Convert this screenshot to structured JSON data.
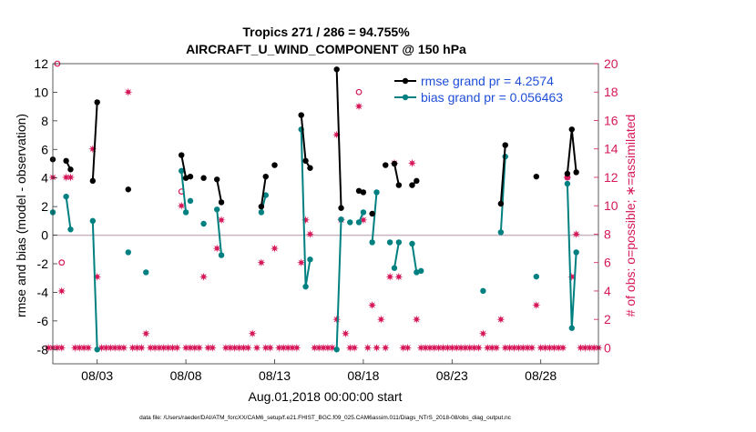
{
  "chart_data": {
    "type": "line",
    "title_line1": "Tropics 271 / 286 = 94.755%",
    "title_line2": "AIRCRAFT_U_WIND_COMPONENT @ 150 hPa",
    "xlabel": "Aug.01,2018 00:00:00 start",
    "ylabel_left": "rmse and bias (model - observation)",
    "ylabel_right": "# of obs: o=possible; ∗=assimilated",
    "footer": "data file: /Users/raeder/DAI/ATM_forcXX/CAM6_setup/f.e21.FHIST_BGC.f09_025.CAM6assim.011/Diags_NTrS_2018-08/obs_diag_output.nc",
    "x_range_days": [
      0.5,
      31.25
    ],
    "x_ticks": [
      {
        "day": 3,
        "label": "08/03"
      },
      {
        "day": 8,
        "label": "08/08"
      },
      {
        "day": 13,
        "label": "08/13"
      },
      {
        "day": 18,
        "label": "08/18"
      },
      {
        "day": 23,
        "label": "08/23"
      },
      {
        "day": 28,
        "label": "08/28"
      }
    ],
    "ylim_left": [
      -9,
      12
    ],
    "yticks_left": [
      "12",
      "10",
      "8",
      "6",
      "4",
      "2",
      "0",
      "-2",
      "-4",
      "-6",
      "-8"
    ],
    "ylim_right": [
      -1.125,
      20
    ],
    "yticks_right": [
      "20",
      "18",
      "16",
      "14",
      "12",
      "10",
      "8",
      "6",
      "4",
      "2",
      "0"
    ],
    "legend": [
      {
        "label": "rmse grand pr = 4.2574",
        "color": "#000000"
      },
      {
        "label": "bias grand pr = 0.056463",
        "color": "#008080"
      }
    ],
    "colors": {
      "rmse": "#000000",
      "bias": "#008080",
      "obs": "#d6175a",
      "zero_line": "#c8b4c0",
      "legend_text": "#1f4fd8"
    },
    "rmse_segments": [
      [
        [
          0.5,
          5.3
        ]
      ],
      [
        [
          1.25,
          5.2
        ],
        [
          1.5,
          4.6
        ]
      ],
      [
        [
          2.75,
          3.8
        ],
        [
          3.0,
          9.3
        ]
      ],
      [
        [
          4.75,
          3.2
        ]
      ],
      [
        [
          7.75,
          5.6
        ],
        [
          8.0,
          4.0
        ]
      ],
      [
        [
          8.25,
          4.1
        ]
      ],
      [
        [
          9.0,
          4.0
        ]
      ],
      [
        [
          9.75,
          3.9
        ],
        [
          10.0,
          2.3
        ]
      ],
      [
        [
          12.25,
          2.0
        ],
        [
          12.5,
          4.1
        ]
      ],
      [
        [
          13.0,
          4.9
        ]
      ],
      [
        [
          14.5,
          8.4
        ],
        [
          14.75,
          5.2
        ],
        [
          15.0,
          4.7
        ]
      ],
      [
        [
          16.5,
          11.6
        ],
        [
          16.75,
          1.9
        ]
      ],
      [
        [
          17.75,
          3.1
        ],
        [
          18.0,
          3.0
        ]
      ],
      [
        [
          18.5,
          1.5
        ]
      ],
      [
        [
          19.25,
          4.9
        ]
      ],
      [
        [
          19.75,
          5.0
        ],
        [
          20.0,
          3.5
        ]
      ],
      [
        [
          20.75,
          3.5
        ],
        [
          21.0,
          3.8
        ]
      ],
      [
        [
          25.75,
          2.2
        ],
        [
          26.0,
          6.3
        ]
      ],
      [
        [
          27.75,
          4.1
        ]
      ],
      [
        [
          29.5,
          4.3
        ],
        [
          29.75,
          7.4
        ],
        [
          30.0,
          4.4
        ]
      ]
    ],
    "bias_segments": [
      [
        [
          0.5,
          1.6
        ]
      ],
      [
        [
          1.25,
          2.7
        ],
        [
          1.5,
          0.4
        ]
      ],
      [
        [
          2.75,
          1.0
        ],
        [
          3.0,
          -8.0
        ]
      ],
      [
        [
          4.75,
          -1.2
        ]
      ],
      [
        [
          5.75,
          -2.6
        ]
      ],
      [
        [
          7.75,
          4.5
        ],
        [
          8.0,
          1.6
        ]
      ],
      [
        [
          8.25,
          2.4
        ]
      ],
      [
        [
          9.0,
          0.8
        ]
      ],
      [
        [
          9.75,
          1.8
        ],
        [
          10.0,
          -1.4
        ]
      ],
      [
        [
          12.25,
          1.6
        ],
        [
          12.5,
          2.8
        ]
      ],
      [
        [
          14.5,
          7.4
        ],
        [
          14.75,
          -3.6
        ],
        [
          15.0,
          -1.7
        ]
      ],
      [
        [
          16.5,
          -8.0
        ],
        [
          16.75,
          1.1
        ]
      ],
      [
        [
          17.25,
          0.9
        ]
      ],
      [
        [
          17.75,
          0.9
        ],
        [
          18.0,
          1.6
        ]
      ],
      [
        [
          18.5,
          -0.5
        ],
        [
          18.75,
          3.0
        ]
      ],
      [
        [
          19.5,
          -0.5
        ]
      ],
      [
        [
          19.75,
          -2.3
        ],
        [
          20.0,
          -0.5
        ]
      ],
      [
        [
          20.75,
          -0.6
        ],
        [
          21.0,
          -2.6
        ],
        [
          21.25,
          -2.5
        ]
      ],
      [
        [
          24.75,
          -3.9
        ]
      ],
      [
        [
          25.75,
          0.2
        ],
        [
          26.0,
          5.5
        ]
      ],
      [
        [
          27.75,
          -2.9
        ]
      ],
      [
        [
          29.5,
          3.6
        ],
        [
          29.75,
          -6.5
        ],
        [
          30.0,
          -1.2
        ]
      ]
    ],
    "assimilated_counts": [
      [
        0.25,
        0
      ],
      [
        0.5,
        0
      ],
      [
        0.75,
        0
      ],
      [
        1.0,
        0
      ],
      [
        1.25,
        12
      ],
      [
        1.5,
        12
      ],
      [
        1.75,
        0
      ],
      [
        2.0,
        0
      ],
      [
        2.25,
        0
      ],
      [
        2.5,
        0
      ],
      [
        2.75,
        14
      ],
      [
        3.0,
        5
      ],
      [
        3.25,
        0
      ],
      [
        3.5,
        0
      ],
      [
        3.75,
        0
      ],
      [
        4.0,
        0
      ],
      [
        4.25,
        0
      ],
      [
        4.5,
        0
      ],
      [
        4.75,
        18
      ],
      [
        5.0,
        0
      ],
      [
        5.25,
        0
      ],
      [
        5.5,
        0
      ],
      [
        5.75,
        1
      ],
      [
        6.0,
        0
      ],
      [
        6.25,
        0
      ],
      [
        6.5,
        0
      ],
      [
        6.75,
        0
      ],
      [
        7.0,
        0
      ],
      [
        7.25,
        0
      ],
      [
        7.5,
        0
      ],
      [
        7.75,
        10
      ],
      [
        8.0,
        0
      ],
      [
        8.25,
        0
      ],
      [
        8.5,
        0
      ],
      [
        8.75,
        0
      ],
      [
        9.0,
        5
      ],
      [
        9.25,
        0
      ],
      [
        9.5,
        0
      ],
      [
        9.75,
        7
      ],
      [
        10.0,
        9
      ],
      [
        0.5,
        12
      ],
      [
        1.0,
        4
      ],
      [
        16.5,
        15
      ],
      [
        10.25,
        0
      ],
      [
        10.5,
        0
      ],
      [
        10.75,
        0
      ],
      [
        11.0,
        0
      ],
      [
        11.25,
        0
      ],
      [
        11.5,
        0
      ],
      [
        11.75,
        1
      ],
      [
        12.0,
        0
      ],
      [
        12.25,
        6
      ],
      [
        12.5,
        0
      ],
      [
        12.75,
        0
      ],
      [
        13.0,
        7
      ],
      [
        13.25,
        0
      ],
      [
        13.5,
        0
      ],
      [
        13.75,
        0
      ],
      [
        14.0,
        0
      ],
      [
        14.25,
        0
      ],
      [
        14.5,
        6
      ],
      [
        14.75,
        9
      ],
      [
        15.0,
        8
      ],
      [
        15.25,
        0
      ],
      [
        15.5,
        0
      ],
      [
        15.75,
        0
      ],
      [
        16.0,
        0
      ],
      [
        16.25,
        0
      ],
      [
        16.5,
        2
      ],
      [
        16.75,
        9
      ],
      [
        17.0,
        1
      ],
      [
        17.25,
        0
      ],
      [
        17.5,
        0
      ],
      [
        17.75,
        17
      ],
      [
        18.0,
        9
      ],
      [
        18.25,
        0
      ],
      [
        18.5,
        3
      ],
      [
        18.75,
        0
      ],
      [
        19.0,
        2
      ],
      [
        19.25,
        0
      ],
      [
        19.5,
        5
      ],
      [
        19.75,
        13
      ],
      [
        20.0,
        5
      ],
      [
        20.25,
        0
      ],
      [
        20.5,
        0
      ],
      [
        20.75,
        13
      ],
      [
        21.0,
        2
      ],
      [
        21.25,
        0
      ],
      [
        21.5,
        0
      ],
      [
        21.75,
        0
      ],
      [
        22.0,
        0
      ],
      [
        22.25,
        0
      ],
      [
        22.5,
        0
      ],
      [
        22.75,
        0
      ],
      [
        23.0,
        0
      ],
      [
        23.25,
        0
      ],
      [
        23.5,
        0
      ],
      [
        23.75,
        0
      ],
      [
        24.0,
        0
      ],
      [
        24.25,
        0
      ],
      [
        24.5,
        0
      ],
      [
        24.75,
        1
      ],
      [
        25.0,
        0
      ],
      [
        25.25,
        0
      ],
      [
        25.5,
        0
      ],
      [
        25.75,
        2
      ],
      [
        26.0,
        0
      ],
      [
        26.25,
        0
      ],
      [
        26.5,
        0
      ],
      [
        26.75,
        0
      ],
      [
        27.0,
        0
      ],
      [
        27.25,
        0
      ],
      [
        27.5,
        0
      ],
      [
        27.75,
        3
      ],
      [
        28.0,
        0
      ],
      [
        28.25,
        0
      ],
      [
        28.5,
        0
      ],
      [
        28.75,
        0
      ],
      [
        29.0,
        0
      ],
      [
        29.25,
        0
      ],
      [
        29.5,
        12
      ],
      [
        29.75,
        5
      ],
      [
        30.0,
        8
      ],
      [
        30.25,
        0
      ],
      [
        30.5,
        0
      ],
      [
        30.75,
        0
      ],
      [
        31.0,
        0
      ],
      [
        31.25,
        0
      ]
    ],
    "possible_counts": [
      [
        0.75,
        20
      ],
      [
        1.0,
        6
      ],
      [
        7.75,
        11
      ],
      [
        17.75,
        18
      ],
      [
        29.5,
        12
      ]
    ]
  }
}
